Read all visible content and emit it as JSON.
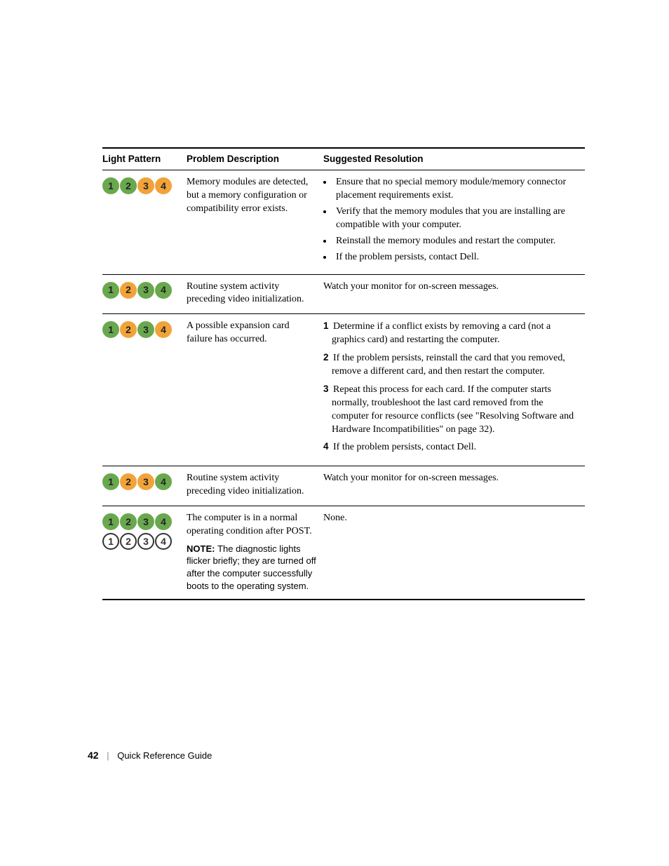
{
  "colors": {
    "led_green": "#6aa84f",
    "led_yellow": "#f1a33a",
    "led_off_border": "#333333",
    "led_number_on": "#222222",
    "led_number_off": "#333333",
    "rule": "#000000"
  },
  "table": {
    "headers": {
      "light_pattern": "Light Pattern",
      "problem": "Problem Description",
      "resolution": "Suggested Resolution"
    },
    "rows": [
      {
        "lights": [
          {
            "state": "green"
          },
          {
            "state": "green"
          },
          {
            "state": "yellow"
          },
          {
            "state": "yellow"
          }
        ],
        "problem": "Memory modules are detected, but a memory configuration or compatibility error exists.",
        "resolution_type": "bullets",
        "resolution_items": [
          "Ensure that no special memory module/memory connector placement requirements exist.",
          "Verify that the memory modules that you are installing are compatible with your computer.",
          "Reinstall the memory modules and restart the computer.",
          "If the problem persists, contact Dell."
        ]
      },
      {
        "lights": [
          {
            "state": "green"
          },
          {
            "state": "yellow"
          },
          {
            "state": "green"
          },
          {
            "state": "green"
          }
        ],
        "problem": "Routine system activity preceding video initialization.",
        "resolution_type": "text",
        "resolution_text": "Watch your monitor for on-screen messages."
      },
      {
        "lights": [
          {
            "state": "green"
          },
          {
            "state": "yellow"
          },
          {
            "state": "green"
          },
          {
            "state": "yellow"
          }
        ],
        "problem": "A possible expansion card failure has occurred.",
        "resolution_type": "steps",
        "resolution_items": [
          "Determine if a conflict exists by removing a card (not a graphics card) and restarting the computer.",
          "If the problem persists, reinstall the card that you removed, remove a different card, and then restart the computer.",
          "Repeat this process for each card. If the computer starts normally, troubleshoot the last card removed from the computer for resource conflicts (see \"Resolving Software and Hardware Incompatibilities\" on page 32).",
          "If the problem persists, contact Dell."
        ]
      },
      {
        "lights": [
          {
            "state": "green"
          },
          {
            "state": "yellow"
          },
          {
            "state": "yellow"
          },
          {
            "state": "green"
          }
        ],
        "problem": "Routine system activity preceding video initialization.",
        "resolution_type": "text",
        "resolution_text": "Watch your monitor for on-screen messages."
      },
      {
        "lights_double": true,
        "lights": [
          {
            "state": "green"
          },
          {
            "state": "green"
          },
          {
            "state": "green"
          },
          {
            "state": "green"
          }
        ],
        "lights2": [
          {
            "state": "off"
          },
          {
            "state": "off"
          },
          {
            "state": "off"
          },
          {
            "state": "off"
          }
        ],
        "problem": "The computer is in a normal operating condition after POST.",
        "note_label": "NOTE:",
        "note_text": "The diagnostic lights flicker briefly; they are turned off after the computer successfully boots to the operating system.",
        "resolution_type": "text",
        "resolution_text": "None."
      }
    ]
  },
  "footer": {
    "page_number": "42",
    "doc_title": "Quick Reference Guide"
  }
}
